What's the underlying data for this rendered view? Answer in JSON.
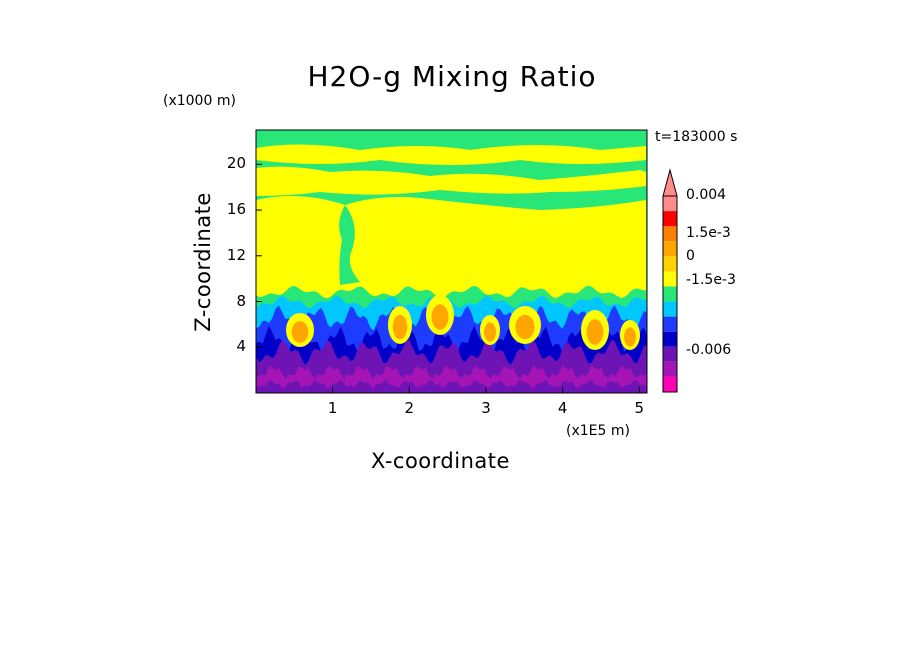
{
  "chart_data": {
    "type": "heatmap",
    "title": "H2O-g Mixing Ratio",
    "xlabel": "X-coordinate",
    "ylabel": "Z-coordinate",
    "x_unit": "(x1E5 m)",
    "y_unit": "(x1000 m)",
    "time_label": "t=183000 s",
    "xlim": [
      0,
      5.1
    ],
    "ylim": [
      0,
      23
    ],
    "x_ticks": [
      1,
      2,
      3,
      4,
      5
    ],
    "y_ticks": [
      4,
      8,
      12,
      16,
      20
    ],
    "colorbar": {
      "labels": [
        {
          "text": "0.004",
          "value": 0.004
        },
        {
          "text": "1.5e-3",
          "value": 0.0015
        },
        {
          "text": "0",
          "value": 0
        },
        {
          "text": "-1.5e-3",
          "value": -0.0015
        },
        {
          "text": "-0.006",
          "value": -0.006
        }
      ],
      "bins": [
        {
          "color": "#ff00b4"
        },
        {
          "color": "#a514b4"
        },
        {
          "color": "#6e14b4"
        },
        {
          "color": "#0000c8"
        },
        {
          "color": "#1e3cff"
        },
        {
          "color": "#00c8ff"
        },
        {
          "color": "#28e678"
        },
        {
          "color": "#ffff00"
        },
        {
          "color": "#ffd200"
        },
        {
          "color": "#ffa500"
        },
        {
          "color": "#ff7d00"
        },
        {
          "color": "#ff0000"
        },
        {
          "color": "#ff8c8c"
        }
      ]
    },
    "regions": [
      {
        "color": "#28e678",
        "z_range": [
          17.5,
          23
        ],
        "description": "upper mixed layer"
      },
      {
        "color": "#ffff00",
        "z_range": [
          9,
          17.5
        ],
        "description": "mid-level band"
      },
      {
        "color": "#00c8ff",
        "z_range": [
          7,
          9
        ]
      },
      {
        "color": "#1e3cff",
        "z_range": [
          4,
          7
        ]
      },
      {
        "color": "#6e14b4",
        "z_range": [
          0,
          4
        ]
      }
    ]
  }
}
